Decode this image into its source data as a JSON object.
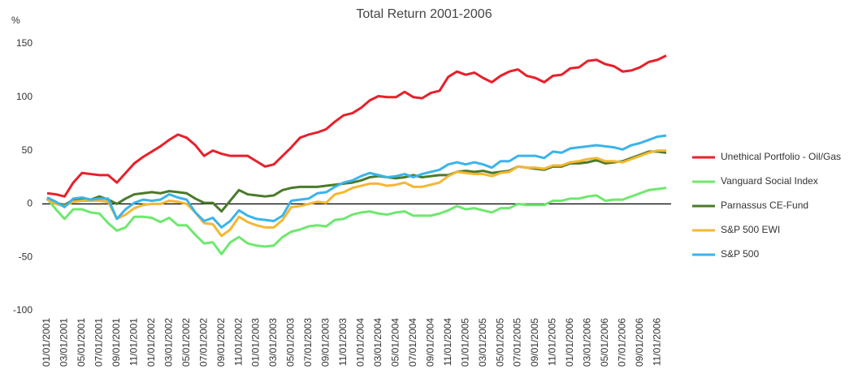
{
  "chart_data": {
    "type": "line",
    "title": "Total Return 2001-2006",
    "y_label": "%",
    "categories": [
      "01/01/2001",
      null,
      "03/01/2001",
      null,
      "05/01/2001",
      null,
      "07/01/2001",
      null,
      "09/01/2001",
      null,
      "11/01/2001",
      null,
      "01/01/2002",
      null,
      "03/01/2002",
      null,
      "05/01/2002",
      null,
      "07/01/2002",
      null,
      "09/01/2002",
      null,
      "11/01/2002",
      null,
      "01/01/2003",
      null,
      "03/01/2003",
      null,
      "05/01/2003",
      null,
      "07/01/2003",
      null,
      "09/01/2003",
      null,
      "11/01/2003",
      null,
      "01/01/2004",
      null,
      "03/01/2004",
      null,
      "05/01/2004",
      null,
      "07/01/2004",
      null,
      "09/01/2004",
      null,
      "11/01/2004",
      null,
      "01/01/2005",
      null,
      "03/01/2005",
      null,
      "05/01/2005",
      null,
      "07/01/2005",
      null,
      "09/01/2005",
      null,
      "11/01/2005",
      null,
      "01/01/2006",
      null,
      "03/01/2006",
      null,
      "05/01/2006",
      null,
      "07/01/2006",
      null,
      "09/01/2006",
      null,
      "11/01/2006",
      null
    ],
    "series": [
      {
        "name": "Unethical Portfolio - Oil/Gas",
        "color": "#e8202a",
        "values": [
          10,
          9,
          7,
          20,
          29,
          28,
          27,
          27,
          20,
          29,
          38,
          44,
          49,
          54,
          60,
          65,
          62,
          55,
          45,
          50,
          47,
          45,
          45,
          45,
          40,
          35,
          37,
          45,
          53,
          62,
          65,
          67,
          70,
          77,
          83,
          85,
          90,
          97,
          101,
          100,
          100,
          105,
          100,
          99,
          104,
          106,
          119,
          124,
          121,
          123,
          118,
          114,
          120,
          124,
          126,
          120,
          118,
          114,
          120,
          121,
          127,
          128,
          134,
          135,
          131,
          129,
          124,
          125,
          128,
          133,
          135,
          139
        ]
      },
      {
        "name": "Vanguard Social Index",
        "color": "#6ee86e",
        "values": [
          5,
          -5,
          -14,
          -5,
          -5,
          -8,
          -9,
          -18,
          -25,
          -22,
          -12,
          -12,
          -13,
          -17,
          -13,
          -20,
          -20,
          -29,
          -37,
          -36,
          -47,
          -36,
          -31,
          -37,
          -39,
          -40,
          -39,
          -31,
          -26,
          -24,
          -21,
          -20,
          -21,
          -15,
          -14,
          -10,
          -8,
          -7,
          -9,
          -10,
          -8,
          -7,
          -11,
          -11,
          -11,
          -9,
          -6,
          -2,
          -5,
          -4,
          -6,
          -8,
          -4,
          -4,
          0,
          -1,
          -1,
          -1,
          3,
          3,
          5,
          5,
          7,
          8,
          3,
          4,
          4,
          7,
          10,
          13,
          14,
          15
        ]
      },
      {
        "name": "Parnassus CE-Fund",
        "color": "#4a7a2a",
        "values": [
          5,
          1,
          -1,
          4,
          5,
          4,
          7,
          4,
          0,
          5,
          9,
          10,
          11,
          10,
          12,
          11,
          10,
          5,
          1,
          1,
          -7,
          3,
          13,
          9,
          8,
          7,
          8,
          13,
          15,
          16,
          16,
          16,
          17,
          18,
          19,
          20,
          22,
          25,
          26,
          25,
          24,
          25,
          27,
          25,
          26,
          27,
          27,
          30,
          31,
          30,
          31,
          29,
          30,
          31,
          35,
          34,
          33,
          32,
          35,
          35,
          38,
          38,
          39,
          41,
          38,
          39,
          40,
          43,
          46,
          49,
          49,
          48
        ]
      },
      {
        "name": "S&P 500 EWI",
        "color": "#f5b731",
        "values": [
          4,
          0,
          -2,
          2,
          3,
          3,
          3,
          2,
          -14,
          -10,
          -4,
          -1,
          0,
          0,
          3,
          2,
          0,
          -8,
          -18,
          -19,
          -30,
          -24,
          -12,
          -17,
          -20,
          -22,
          -22,
          -15,
          -3,
          -2,
          0,
          2,
          1,
          9,
          11,
          15,
          17,
          19,
          19,
          17,
          18,
          20,
          16,
          16,
          18,
          20,
          26,
          30,
          29,
          28,
          28,
          26,
          29,
          30,
          35,
          34,
          34,
          33,
          36,
          36,
          39,
          40,
          42,
          43,
          40,
          40,
          39,
          42,
          45,
          48,
          50,
          50
        ]
      },
      {
        "name": "S&P 500",
        "color": "#3ab4ea",
        "values": [
          6,
          2,
          -3,
          5,
          6,
          4,
          5,
          5,
          -14,
          -5,
          1,
          4,
          3,
          4,
          9,
          6,
          4,
          -8,
          -16,
          -13,
          -22,
          -16,
          -6,
          -11,
          -14,
          -15,
          -16,
          -11,
          3,
          4,
          5,
          10,
          11,
          16,
          20,
          22,
          26,
          29,
          27,
          25,
          26,
          28,
          25,
          28,
          30,
          32,
          37,
          39,
          37,
          39,
          37,
          34,
          40,
          40,
          45,
          45,
          45,
          43,
          49,
          48,
          52,
          53,
          54,
          55,
          54,
          53,
          51,
          55,
          57,
          60,
          63,
          64
        ]
      }
    ],
    "ylim": [
      -100,
      150
    ],
    "yticks": [
      -100,
      -50,
      0,
      50,
      100,
      150
    ],
    "zero_line": true,
    "legend": "right"
  }
}
